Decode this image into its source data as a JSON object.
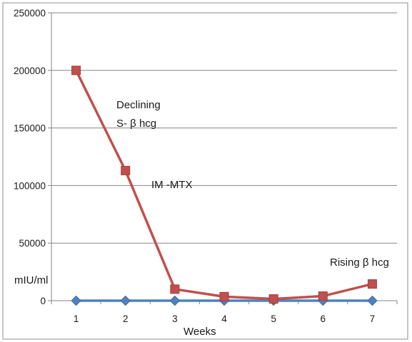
{
  "chart_data": {
    "type": "line",
    "categories": [
      "1",
      "2",
      "3",
      "4",
      "5",
      "6",
      "7"
    ],
    "series": [
      {
        "name": "",
        "color": "#4f81bd",
        "marker": "diamond",
        "values": [
          0,
          0,
          0,
          0,
          0,
          0,
          0
        ]
      },
      {
        "name": "",
        "color": "#c0504d",
        "marker": "square",
        "values": [
          200000,
          113000,
          10000,
          3500,
          1500,
          4000,
          14500
        ]
      }
    ],
    "y_ticks": [
      "0",
      "50000",
      "100000",
      "150000",
      "200000",
      "250000"
    ],
    "ylim": [
      0,
      250000
    ],
    "ylabel": "mIU/ml",
    "xlabel": "Weeks",
    "grid": "horizontal",
    "legend": "none",
    "annotations": [
      {
        "id": "declining",
        "lines": [
          "Declining",
          "S- β hcg"
        ]
      },
      {
        "id": "im_mtx",
        "lines": [
          "IM -MTX"
        ]
      },
      {
        "id": "rising",
        "lines": [
          "Rising β hcg"
        ]
      }
    ]
  }
}
